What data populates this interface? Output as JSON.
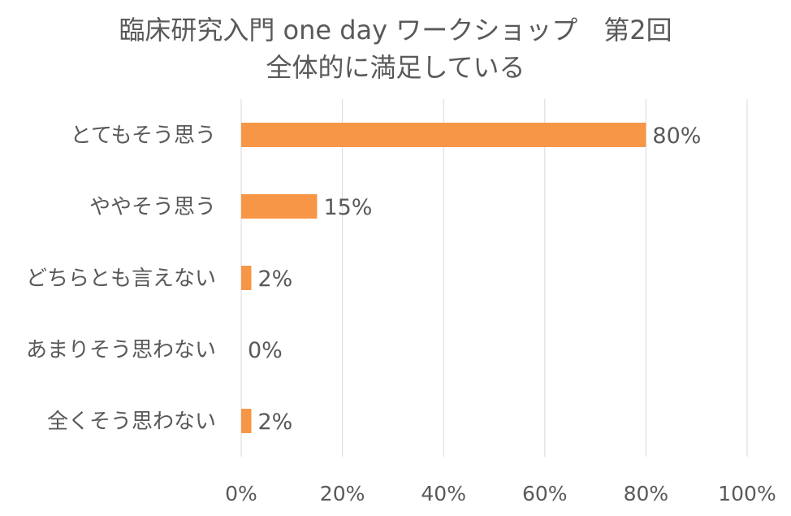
{
  "chart_data": {
    "type": "bar",
    "orientation": "horizontal",
    "title_lines": [
      "臨床研究入門 one day ワークショップ　第2回",
      "全体的に満足している"
    ],
    "categories": [
      "とてもそう思う",
      "ややそう思う",
      "どちらとも言えない",
      "あまりそう思わない",
      "全くそう思わない"
    ],
    "values": [
      80,
      15,
      2,
      0,
      2
    ],
    "data_labels": [
      "80%",
      "15%",
      "2%",
      "0%",
      "2%"
    ],
    "x_ticks": [
      "0%",
      "20%",
      "40%",
      "60%",
      "80%",
      "100%"
    ],
    "xlim": [
      0,
      100
    ],
    "grid": true,
    "legend": "none",
    "bar_color": "#F79646",
    "text_color": "#595959",
    "grid_color": "#D9D9D9"
  }
}
